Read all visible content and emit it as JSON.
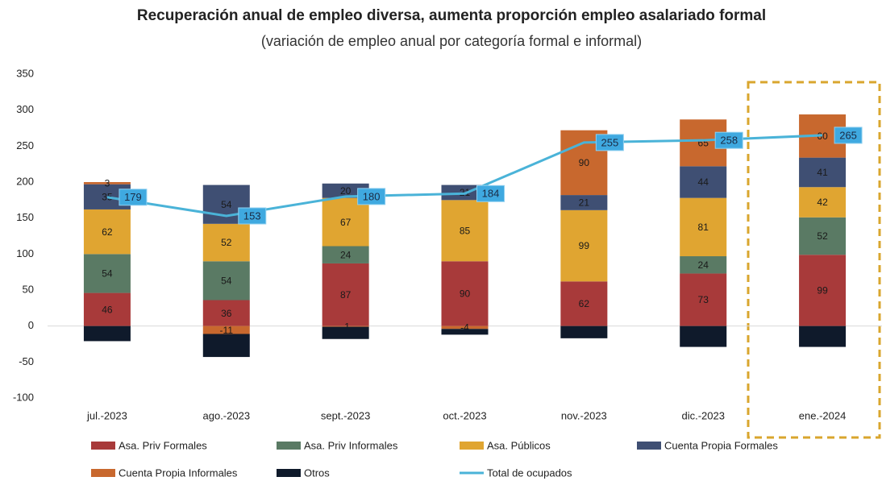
{
  "chart_data": {
    "type": "bar",
    "title": "Recuperación anual de empleo diversa, aumenta proporción empleo asalariado formal",
    "subtitle": "(variación de empleo anual por categoría formal e informal)",
    "categories": [
      "jul.-2023",
      "ago.-2023",
      "sept.-2023",
      "oct.-2023",
      "nov.-2023",
      "dic.-2023",
      "ene.-2024"
    ],
    "stacked": true,
    "series": [
      {
        "name": "Asa. Priv Formales",
        "color": "#a83a3a",
        "values": [
          46,
          36,
          87,
          90,
          62,
          73,
          99
        ]
      },
      {
        "name": "Asa. Priv Informales",
        "color": "#5a7a64",
        "values": [
          54,
          54,
          24,
          null,
          null,
          24,
          52
        ]
      },
      {
        "name": "Asa. Públicos",
        "color": "#e0a531",
        "values": [
          62,
          52,
          67,
          85,
          99,
          81,
          42
        ]
      },
      {
        "name": "Cuenta Propia Formales",
        "color": "#3f4f73",
        "values": [
          35,
          54,
          20,
          21,
          21,
          44,
          41
        ]
      },
      {
        "name": "Cuenta Propia Informales",
        "color": "#c8682e",
        "values": [
          3,
          -11,
          -1,
          -4,
          90,
          65,
          60
        ]
      },
      {
        "name": "Otros",
        "color": "#0f1a2b",
        "labels": false,
        "values": [
          -21,
          -32,
          -17,
          -8,
          -17,
          -29,
          -29
        ]
      },
      {
        "name": "Total de ocupados",
        "type": "line",
        "color": "#4ab3d8",
        "values": [
          179,
          153,
          180,
          184,
          255,
          258,
          265
        ]
      }
    ],
    "ylim": [
      -100,
      350
    ],
    "yticks": [
      -100,
      -50,
      0,
      50,
      100,
      150,
      200,
      250,
      300,
      350
    ],
    "grid": false
  }
}
